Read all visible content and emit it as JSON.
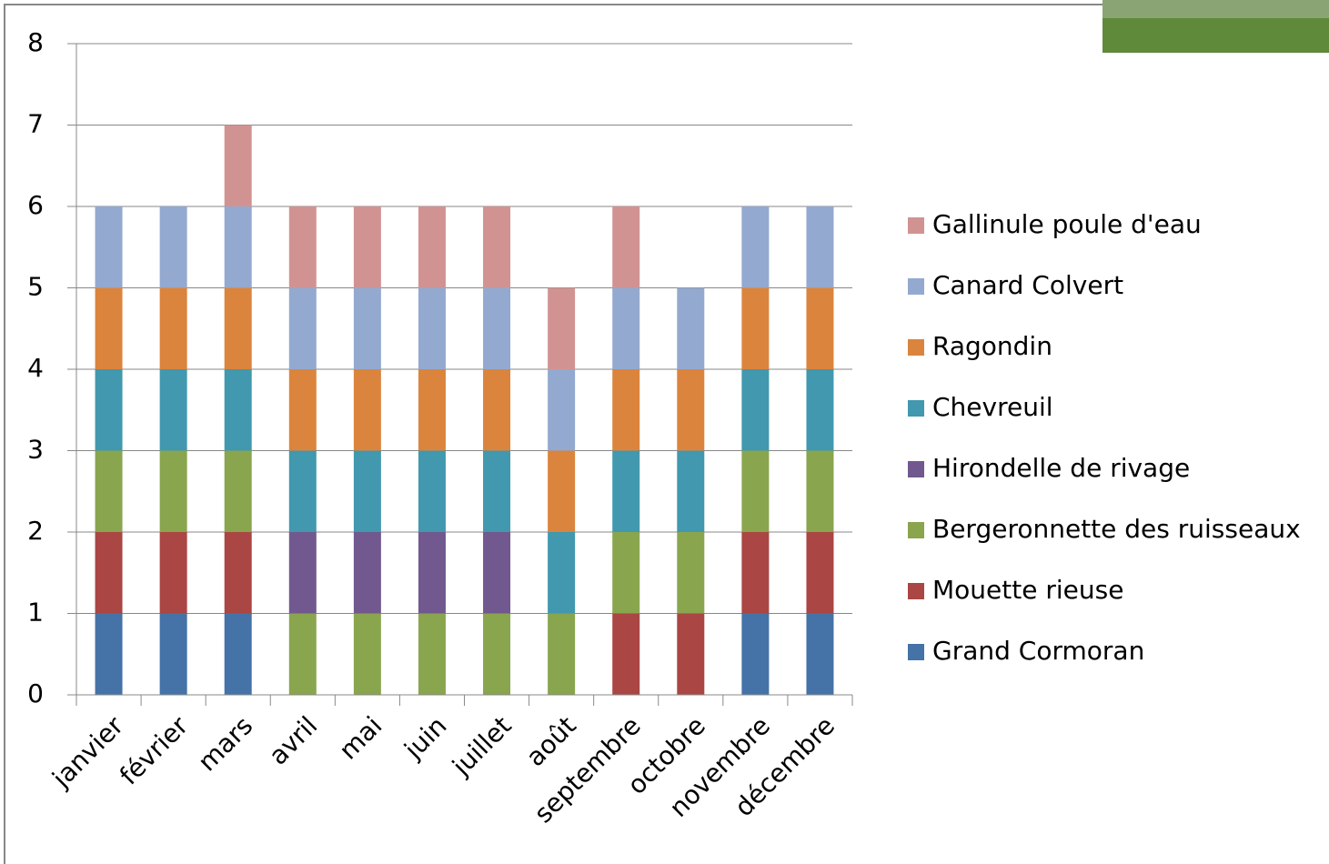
{
  "chart_data": {
    "type": "stacked-bar",
    "categories": [
      "janvier",
      "février",
      "mars",
      "avril",
      "mai",
      "juin",
      "juillet",
      "août",
      "septembre",
      "octobre",
      "novembre",
      "décembre"
    ],
    "series": [
      {
        "name": "Grand Cormoran",
        "color": "#4572a7",
        "values": [
          1,
          1,
          1,
          0,
          0,
          0,
          0,
          0,
          0,
          0,
          1,
          1
        ]
      },
      {
        "name": "Mouette rieuse",
        "color": "#aa4643",
        "values": [
          1,
          1,
          1,
          0,
          0,
          0,
          0,
          0,
          1,
          1,
          1,
          1
        ]
      },
      {
        "name": "Bergeronnette des ruisseaux",
        "color": "#89a54e",
        "values": [
          1,
          1,
          1,
          1,
          1,
          1,
          1,
          1,
          1,
          1,
          1,
          1
        ]
      },
      {
        "name": "Hirondelle de rivage",
        "color": "#71588f",
        "values": [
          0,
          0,
          0,
          1,
          1,
          1,
          1,
          0,
          0,
          0,
          0,
          0
        ]
      },
      {
        "name": "Chevreuil",
        "color": "#4198af",
        "values": [
          1,
          1,
          1,
          1,
          1,
          1,
          1,
          1,
          1,
          1,
          1,
          1
        ]
      },
      {
        "name": "Ragondin",
        "color": "#db843d",
        "values": [
          1,
          1,
          1,
          1,
          1,
          1,
          1,
          1,
          1,
          1,
          1,
          1
        ]
      },
      {
        "name": "Canard Colvert",
        "color": "#93a9cf",
        "values": [
          1,
          1,
          1,
          1,
          1,
          1,
          1,
          1,
          1,
          1,
          1,
          1
        ]
      },
      {
        "name": "Gallinule poule d'eau",
        "color": "#d19392",
        "values": [
          0,
          0,
          1,
          1,
          1,
          1,
          1,
          1,
          1,
          0,
          0,
          0
        ]
      }
    ],
    "ylim": [
      0,
      8
    ],
    "yticks": [
      0,
      1,
      2,
      3,
      4,
      5,
      6,
      7,
      8
    ],
    "grid": true,
    "legend": "right"
  }
}
